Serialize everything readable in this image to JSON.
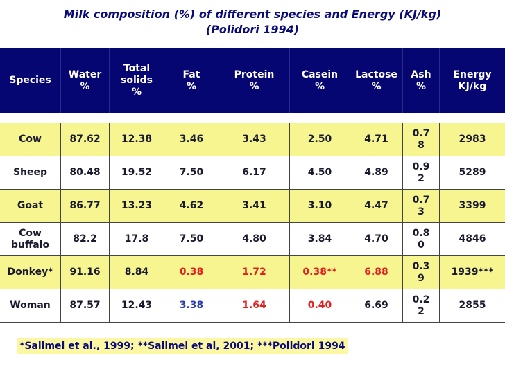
{
  "title": {
    "line1": "Milk composition (%) of different species and Energy (KJ/kg)",
    "line2": "(Polidori 1994)"
  },
  "colors": {
    "header_bg": "#060672",
    "yellow": "#f6f590",
    "white": "#ffffff",
    "red": "#e61e1e",
    "blue": "#2a3ab0",
    "title": "#0b0b78"
  },
  "header": {
    "species": "Species",
    "water": "Water\n%",
    "total_solids": "Total\nsolids\n%",
    "fat": "Fat\n%",
    "protein": "Protein\n%",
    "casein": "Casein\n%",
    "lactose": "Lactose\n%",
    "ash": "Ash\n%",
    "energy": "Energy\nKJ/kg"
  },
  "rows": [
    {
      "species": "Cow",
      "water": "87.62",
      "solids": "12.38",
      "fat": "3.46",
      "protein": "3.43",
      "casein": "2.50",
      "lactose": "4.71",
      "ash": "0.7\n8",
      "energy": "2983"
    },
    {
      "species": "Sheep",
      "water": "80.48",
      "solids": "19.52",
      "fat": "7.50",
      "protein": "6.17",
      "casein": "4.50",
      "lactose": "4.89",
      "ash": "0.9\n2",
      "energy": "5289"
    },
    {
      "species": "Goat",
      "water": "86.77",
      "solids": "13.23",
      "fat": "4.62",
      "protein": "3.41",
      "casein": "3.10",
      "lactose": "4.47",
      "ash": "0.7\n3",
      "energy": "3399"
    },
    {
      "species": "Cow\nbuffalo",
      "water": "82.2",
      "solids": "17.8",
      "fat": "7.50",
      "protein": "4.80",
      "casein": "3.84",
      "lactose": "4.70",
      "ash": "0.8\n0",
      "energy": "4846"
    },
    {
      "species": "Donkey*",
      "water": "91.16",
      "solids": "8.84",
      "fat": "0.38",
      "protein": "1.72",
      "casein": "0.38**",
      "lactose": "6.88",
      "ash": "0.3\n9",
      "energy": "1939***"
    },
    {
      "species": "Woman",
      "water": "87.57",
      "solids": "12.43",
      "fat": "3.38",
      "protein": "1.64",
      "casein": "0.40",
      "lactose": "6.69",
      "ash": "0.2\n2",
      "energy": "2855"
    }
  ],
  "footnote": "*Salimei et al., 1999; **Salimei et al, 2001; ***Polidori 1994"
}
